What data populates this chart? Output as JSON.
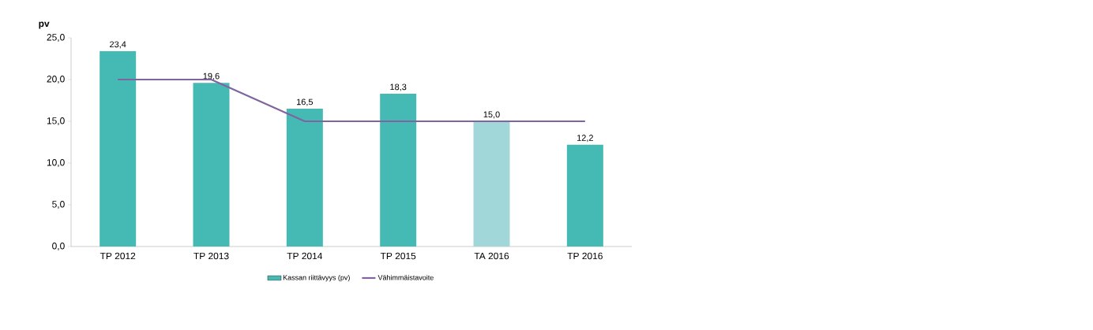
{
  "chart_data": {
    "type": "bar",
    "ylabel": "pv",
    "categories": [
      "TP 2012",
      "TP 2013",
      "TP 2014",
      "TP 2015",
      "TA 2016",
      "TP 2016"
    ],
    "series": [
      {
        "name": "Kassan riittävyys (pv)",
        "color": "#45bab5",
        "colors": [
          "#45bab5",
          "#45bab5",
          "#45bab5",
          "#45bab5",
          "#a2d7d9",
          "#45bab5"
        ],
        "values": [
          23.4,
          19.6,
          16.5,
          18.3,
          15.0,
          12.2
        ],
        "value_labels": [
          "23,4",
          "19,6",
          "16,5",
          "18,3",
          "15,0",
          "12,2"
        ]
      },
      {
        "name": "Vähimmäistavoite",
        "type": "line",
        "color": "#8064a2",
        "values": [
          20,
          20,
          15,
          15,
          15,
          15
        ]
      }
    ],
    "ylim": [
      0,
      25
    ],
    "yticks": [
      {
        "value": 0,
        "label": "0,0"
      },
      {
        "value": 5,
        "label": "5,0"
      },
      {
        "value": 10,
        "label": "10,0"
      },
      {
        "value": 15,
        "label": "15,0"
      },
      {
        "value": 20,
        "label": "20,0"
      },
      {
        "value": 25,
        "label": "25,0"
      }
    ],
    "legend": "bottom",
    "grid": false
  }
}
